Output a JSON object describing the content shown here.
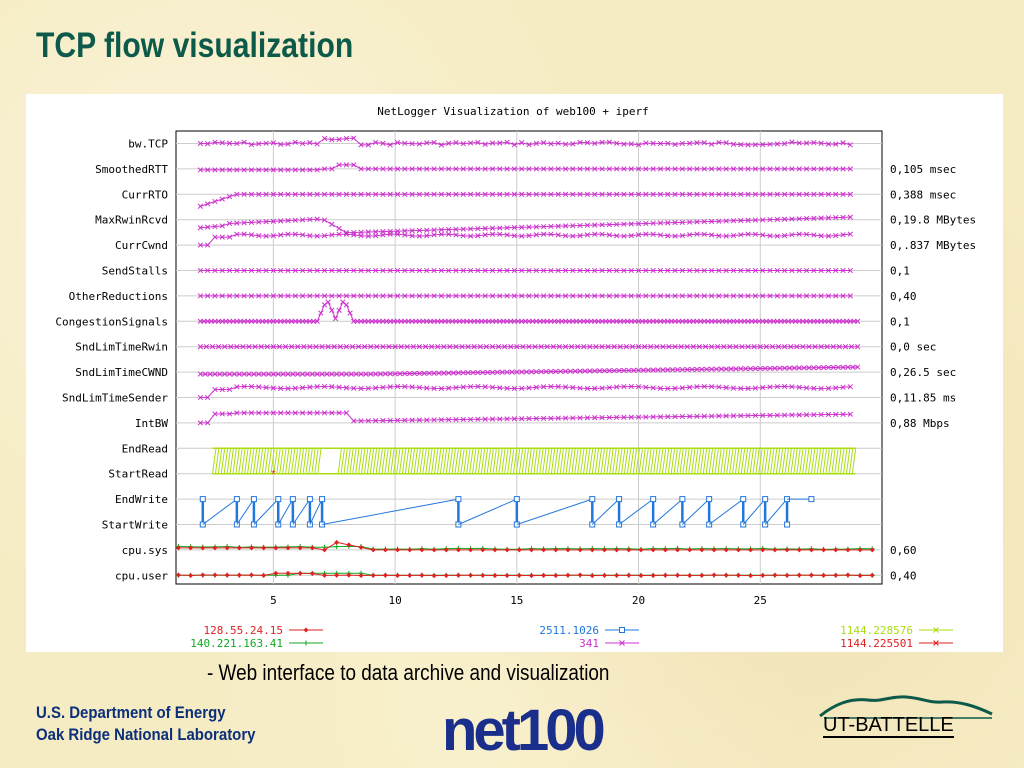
{
  "slide": {
    "title": "TCP flow visualization",
    "caption": "- Web interface to data archive and visualization",
    "org_line1": "U.S. Department of Energy",
    "org_line2": "Oak Ridge National Laboratory",
    "logo_net100": "net100",
    "logo_ut": "UT-BATTELLE"
  },
  "colors": {
    "title": "#0d5a4a",
    "magenta": "#cc33cc",
    "yellowgreen": "#aadd11",
    "blue": "#2277dd",
    "red": "#dd2222",
    "green": "#11aa22",
    "navy": "#0b2f7a"
  },
  "chart_data": {
    "type": "line",
    "title": "NetLogger Visualization of web100 + iperf",
    "xlim": [
      1,
      30
    ],
    "xticks": [
      5,
      10,
      15,
      20,
      25
    ],
    "grid": true,
    "rows": [
      {
        "name": "bw.TCP",
        "range": ""
      },
      {
        "name": "SmoothedRTT",
        "range": "0,105 msec"
      },
      {
        "name": "CurrRTO",
        "range": "0,388 msec"
      },
      {
        "name": "MaxRwinRcvd",
        "range": "0,19.8 MBytes"
      },
      {
        "name": "CurrCwnd",
        "range": "0,.837 MBytes"
      },
      {
        "name": "SendStalls",
        "range": "0,1"
      },
      {
        "name": "OtherReductions",
        "range": "0,40"
      },
      {
        "name": "CongestionSignals",
        "range": "0,1"
      },
      {
        "name": "SndLimTimeRwin",
        "range": "0,0 sec"
      },
      {
        "name": "SndLimTimeCWND",
        "range": "0,26.5 sec"
      },
      {
        "name": "SndLimTimeSender",
        "range": "0,11.85 ms"
      },
      {
        "name": "IntBW",
        "range": "0,88 Mbps"
      },
      {
        "name": "EndRead",
        "range": ""
      },
      {
        "name": "StartRead",
        "range": ""
      },
      {
        "name": "EndWrite",
        "range": ""
      },
      {
        "name": "StartWrite",
        "range": ""
      },
      {
        "name": "cpu.sys",
        "range": "0,60"
      },
      {
        "name": "cpu.user",
        "range": "0,40"
      }
    ],
    "legend": [
      {
        "label": "128.55.24.15",
        "color": "#dd2222",
        "marker": "diamond"
      },
      {
        "label": "140.221.163.41",
        "color": "#11aa22",
        "marker": "plus"
      },
      {
        "label": "2511.1026",
        "color": "#2277dd",
        "marker": "square"
      },
      {
        "label": "341",
        "color": "#cc33cc",
        "marker": "x"
      },
      {
        "label": "1144.228576",
        "color": "#aadd11",
        "marker": "star"
      },
      {
        "label": "1144.225501",
        "color": "#dd2222",
        "marker": "asterisk"
      }
    ],
    "blue_write_events": [
      2.1,
      3.5,
      4.2,
      5.2,
      5.8,
      6.5,
      7.0,
      12.6,
      15.0,
      18.1,
      19.2,
      20.6,
      21.8,
      22.9,
      24.3,
      25.2,
      26.1
    ]
  }
}
